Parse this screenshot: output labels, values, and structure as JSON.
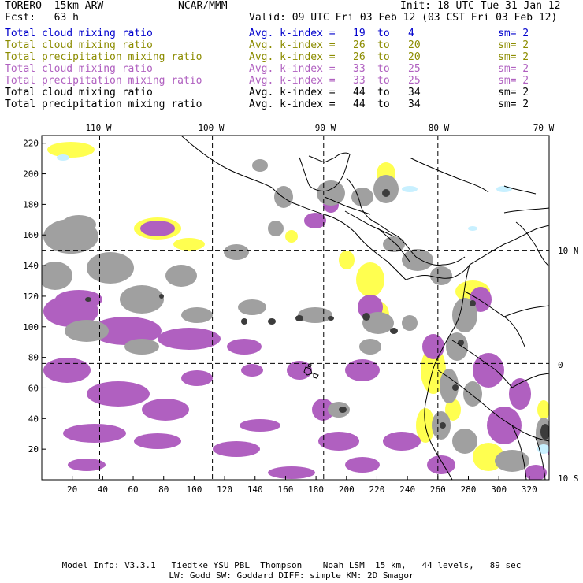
{
  "header": {
    "model": "TORERO  15km ARW",
    "center": "NCAR/MMM",
    "init": "Init: 18 UTC Tue 31 Jan 12",
    "fcst": "Fcst:   63 h",
    "valid": "Valid: 09 UTC Fri 03 Feb 12 (03 CST Fri 03 Feb 12)"
  },
  "legend": [
    {
      "field": "Total cloud mixing ratio",
      "avg": "Avg. k-index =",
      "from": "19",
      "to_word": "to",
      "to": "4",
      "sm": "sm= 2",
      "color": "#0000cc"
    },
    {
      "field": "Total cloud mixing ratio",
      "avg": "Avg. k-index =",
      "from": "26",
      "to_word": "to",
      "to": "20",
      "sm": "sm= 2",
      "color": "#8c8c00"
    },
    {
      "field": "Total precipitation mixing ratio",
      "avg": "Avg. k-index =",
      "from": "26",
      "to_word": "to",
      "to": "20",
      "sm": "sm= 2",
      "color": "#8c8c00"
    },
    {
      "field": "Total cloud mixing ratio",
      "avg": "Avg. k-index =",
      "from": "33",
      "to_word": "to",
      "to": "25",
      "sm": "sm= 2",
      "color": "#b060c0"
    },
    {
      "field": "Total precipitation mixing ratio",
      "avg": "Avg. k-index =",
      "from": "33",
      "to_word": "to",
      "to": "25",
      "sm": "sm= 2",
      "color": "#b060c0"
    },
    {
      "field": "Total cloud mixing ratio",
      "avg": "Avg. k-index =",
      "from": "44",
      "to_word": "to",
      "to": "34",
      "sm": "sm= 2",
      "color": "#000000"
    },
    {
      "field": "Total precipitation mixing ratio",
      "avg": "Avg. k-index =",
      "from": "44",
      "to_word": "to",
      "to": "34",
      "sm": "sm= 2",
      "color": "#000000"
    }
  ],
  "map": {
    "lon_labels": [
      "110 W",
      "100 W",
      "90 W",
      "80 W",
      "70 W"
    ],
    "lat_labels": [
      "10 N",
      "0",
      "10 S"
    ],
    "x_ticks": [
      "20",
      "40",
      "60",
      "80",
      "100",
      "120",
      "140",
      "160",
      "180",
      "200",
      "220",
      "240",
      "260",
      "280",
      "300",
      "320"
    ],
    "y_ticks": [
      "20",
      "40",
      "60",
      "80",
      "100",
      "120",
      "140",
      "160",
      "180",
      "200",
      "220"
    ],
    "grid_units": {
      "x_max": 333,
      "y_max": 225
    },
    "meridians_x": [
      38,
      112,
      185,
      260
    ],
    "parallels_y": [
      76,
      150
    ],
    "colors": {
      "gray": "#a0a0a0",
      "dark_gray": "#3c3c3c",
      "yellow": "#ffff50",
      "purple": "#b060c0",
      "light_blue": "#c8f0ff",
      "coast": "#000000"
    }
  },
  "footer": {
    "line1": "Model Info: V3.3.1   Tiedtke YSU PBL  Thompson    Noah LSM  15 km,   44 levels,   89 sec",
    "line2": "LW: Godd SW: Goddard DIFF: simple KM: 2D Smagor"
  }
}
